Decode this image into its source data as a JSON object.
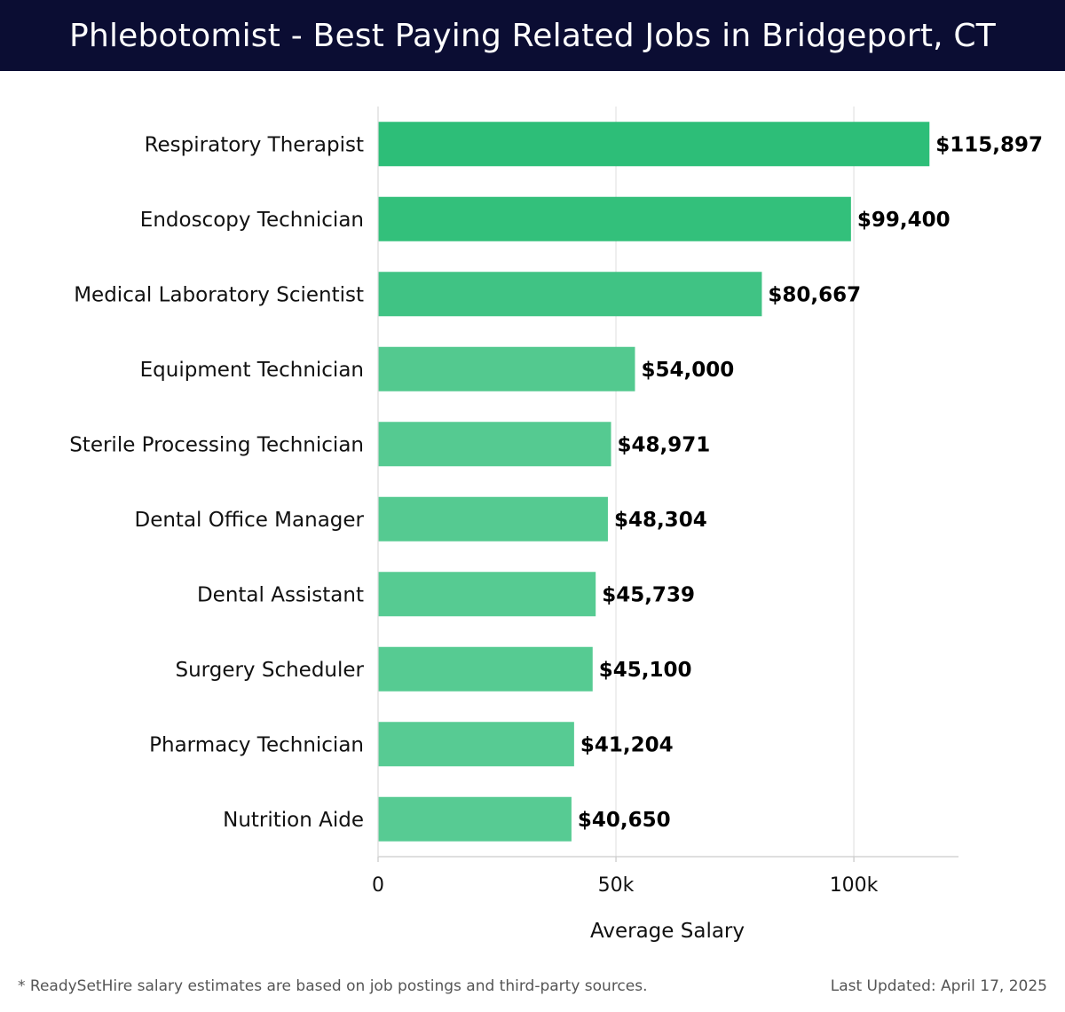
{
  "header": {
    "title": "Phlebotomist - Best Paying Related Jobs in Bridgeport, CT"
  },
  "chart_data": {
    "type": "bar",
    "orientation": "horizontal",
    "title": "Phlebotomist - Best Paying Related Jobs in Bridgeport, CT",
    "xlabel": "Average Salary",
    "ylabel": "",
    "xlim": [
      0,
      122000
    ],
    "xticks": [
      0,
      50000,
      100000
    ],
    "xtick_labels": [
      "0",
      "50k",
      "100k"
    ],
    "grid": true,
    "categories": [
      "Respiratory Therapist",
      "Endoscopy Technician",
      "Medical Laboratory Scientist",
      "Equipment Technician",
      "Sterile Processing Technician",
      "Dental Office Manager",
      "Dental Assistant",
      "Surgery Scheduler",
      "Pharmacy Technician",
      "Nutrition Aide"
    ],
    "values": [
      115897,
      99400,
      80667,
      54000,
      48971,
      48304,
      45739,
      45100,
      41204,
      40650
    ],
    "value_labels": [
      "$115,897",
      "$99,400",
      "$80,667",
      "$54,000",
      "$48,971",
      "$48,304",
      "$45,739",
      "$45,100",
      "$41,204",
      "$40,650"
    ],
    "colors": [
      "#2dbe78",
      "#33c07b",
      "#40c384",
      "#53c98f",
      "#55ca91",
      "#55ca91",
      "#56cb92",
      "#56cb92",
      "#57cb93",
      "#57cb93"
    ]
  },
  "footer": {
    "note": "* ReadySetHire salary estimates are based on job postings and third-party sources.",
    "updated": "Last Updated: April 17, 2025"
  }
}
